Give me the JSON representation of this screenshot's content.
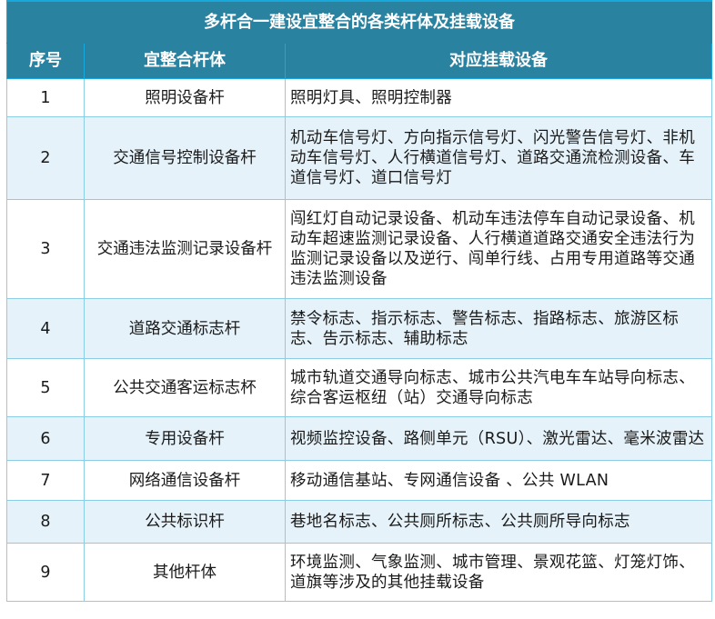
{
  "title": "多杆合一建设宜整合的各类杆体及挂载设备",
  "columns": [
    "序号",
    "宜整合杆体",
    "对应挂载设备"
  ],
  "rows": [
    {
      "no": "1",
      "pole": "照明设备杆",
      "devices": "照明灯具、照明控制器"
    },
    {
      "no": "2",
      "pole": "交通信号控制设备杆",
      "devices": "机动车信号灯、方向指示信号灯、闪光警告信号灯、非机动车信号灯、人行横道信号灯、道路交通流检测设备、车道信号灯、道口信号灯"
    },
    {
      "no": "3",
      "pole": "交通违法监测记录设备杆",
      "devices": "闯红灯自动记录设备、机动车违法停车自动记录设备、机动车超速监测记录设备、人行横道道路交通安全违法行为监测记录设备以及逆行、闯单行线、占用专用道路等交通违法监测设备"
    },
    {
      "no": "4",
      "pole": "道路交通标志杆",
      "devices": "禁令标志、指示标志、警告标志、指路标志、旅游区标志、告示标志、辅助标志"
    },
    {
      "no": "5",
      "pole": "公共交通客运标志杯",
      "devices": "城市轨道交通导向标志、城市公共汽电车车站导向标志、综合客运枢纽（站）交通导向标志"
    },
    {
      "no": "6",
      "pole": "专用设备杆",
      "devices": "视频监控设备、路侧单元（RSU）、激光雷达、毫米波雷达"
    },
    {
      "no": "7",
      "pole": "网络通信设备杆",
      "devices": "移动通信基站、专网通信设备 、公共 WLAN"
    },
    {
      "no": "8",
      "pole": "公共标识杆",
      "devices": "巷地名标志、公共厕所标志、公共厕所导向标志"
    },
    {
      "no": "9",
      "pole": "其他杆体",
      "devices": "环境监测、气象监测、城市管理、景观花篮、灯笼灯饰、道旗等涉及的其他挂载设备"
    }
  ],
  "colors": {
    "header": "#2a82a1",
    "alt_row": "#e5f2f9",
    "border": "#8ccde6"
  }
}
